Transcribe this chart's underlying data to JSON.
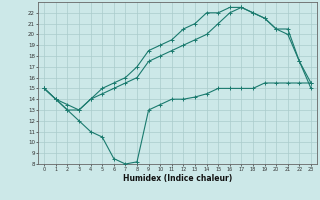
{
  "bg_color": "#cce8e8",
  "grid_color": "#aacccc",
  "line_color": "#1a7a6e",
  "xlabel": "Humidex (Indice chaleur)",
  "xlim": [
    -0.5,
    23.5
  ],
  "ylim": [
    8,
    23
  ],
  "xticks": [
    0,
    1,
    2,
    3,
    4,
    5,
    6,
    7,
    8,
    9,
    10,
    11,
    12,
    13,
    14,
    15,
    16,
    17,
    18,
    19,
    20,
    21,
    22,
    23
  ],
  "yticks": [
    8,
    9,
    10,
    11,
    12,
    13,
    14,
    15,
    16,
    17,
    18,
    19,
    20,
    21,
    22
  ],
  "curve1_x": [
    0,
    1,
    2,
    3,
    4,
    5,
    6,
    7,
    8,
    9,
    10,
    11,
    12,
    13,
    14,
    15,
    16,
    17,
    18,
    19,
    20,
    21,
    22,
    23
  ],
  "curve1_y": [
    15,
    14,
    13,
    13,
    14,
    14.5,
    15,
    15.5,
    16,
    17.5,
    18,
    18.5,
    19,
    19.5,
    20,
    21,
    22,
    22.5,
    22,
    21.5,
    20.5,
    20,
    17.5,
    15
  ],
  "curve2_x": [
    0,
    1,
    2,
    3,
    4,
    5,
    6,
    7,
    8,
    9,
    10,
    11,
    12,
    13,
    14,
    15,
    16,
    17,
    18,
    19,
    20,
    21,
    22,
    23
  ],
  "curve2_y": [
    15,
    14,
    13.5,
    13,
    14,
    15,
    15.5,
    16,
    17,
    18.5,
    19,
    19.5,
    20.5,
    21,
    22,
    22,
    22.5,
    22.5,
    22,
    21.5,
    20.5,
    20.5,
    17.5,
    15.5
  ],
  "curve3_x": [
    0,
    1,
    2,
    3,
    4,
    5,
    6,
    7,
    8,
    9,
    10,
    11,
    12,
    13,
    14,
    15,
    16,
    17,
    18,
    19,
    20,
    21,
    22,
    23
  ],
  "curve3_y": [
    15,
    14,
    13,
    12,
    11,
    10.5,
    8.5,
    8,
    8.2,
    13,
    13.5,
    14,
    14,
    14.2,
    14.5,
    15,
    15,
    15,
    15,
    15.5,
    15.5,
    15.5,
    15.5,
    15.5
  ]
}
